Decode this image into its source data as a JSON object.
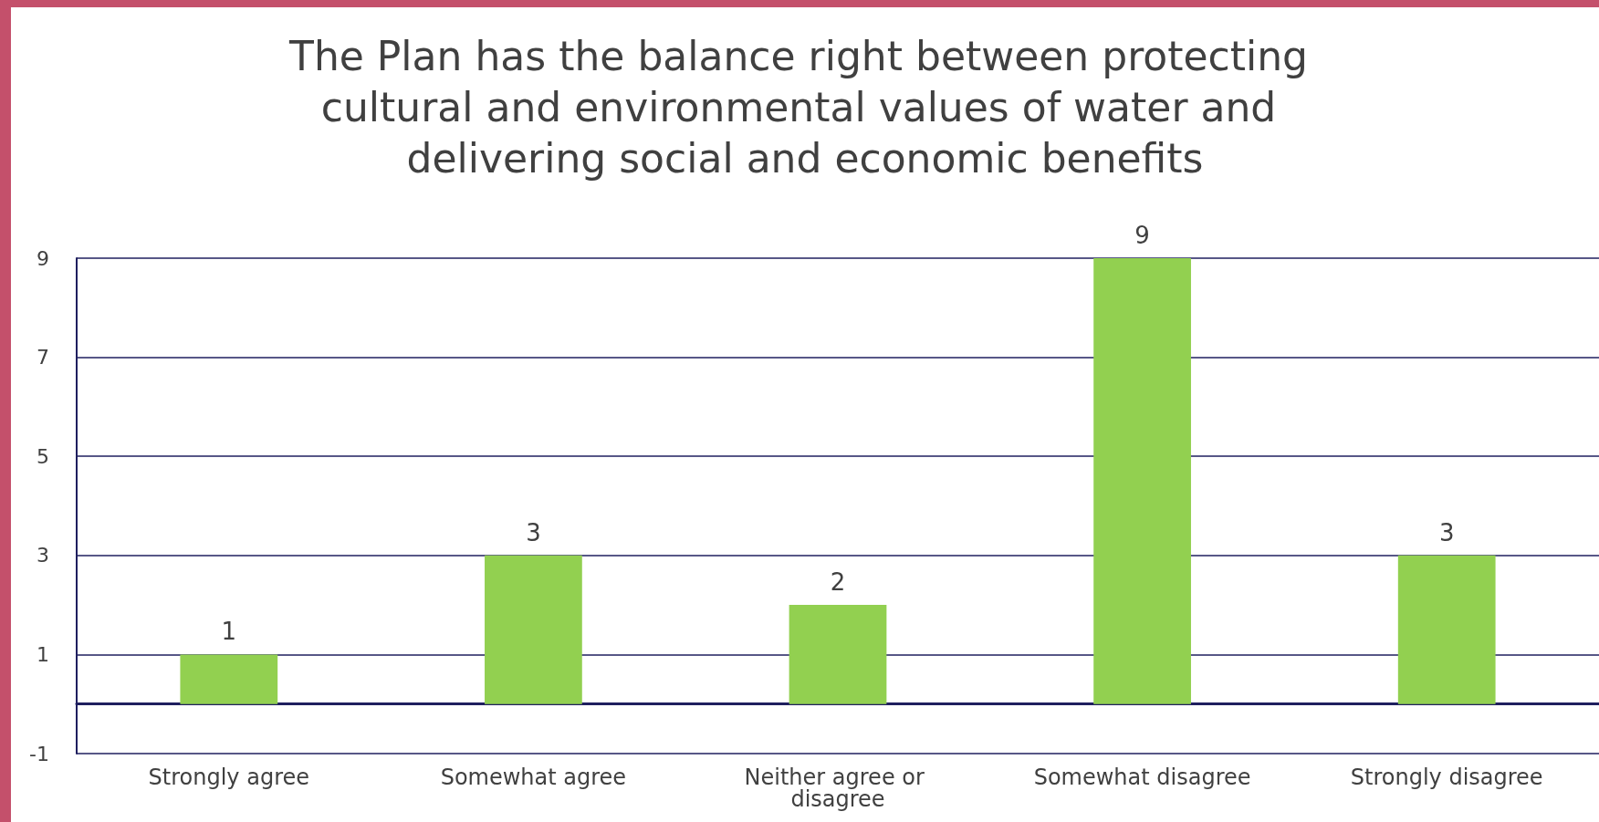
{
  "chart_data": {
    "type": "bar",
    "title": "The Plan has the balance right between protecting cultural and environmental values of water and delivering social and economic benefits",
    "categories": [
      "Strongly agree",
      "Somewhat agree",
      "Neither agree or disagree",
      "Somewhat disagree",
      "Strongly disagree"
    ],
    "values": [
      1,
      3,
      2,
      9,
      3
    ],
    "color": "#92d050",
    "ylim": [
      -1,
      9
    ],
    "yticks": [
      -1,
      1,
      3,
      5,
      7,
      9
    ],
    "grid": "y",
    "data_labels": true
  }
}
